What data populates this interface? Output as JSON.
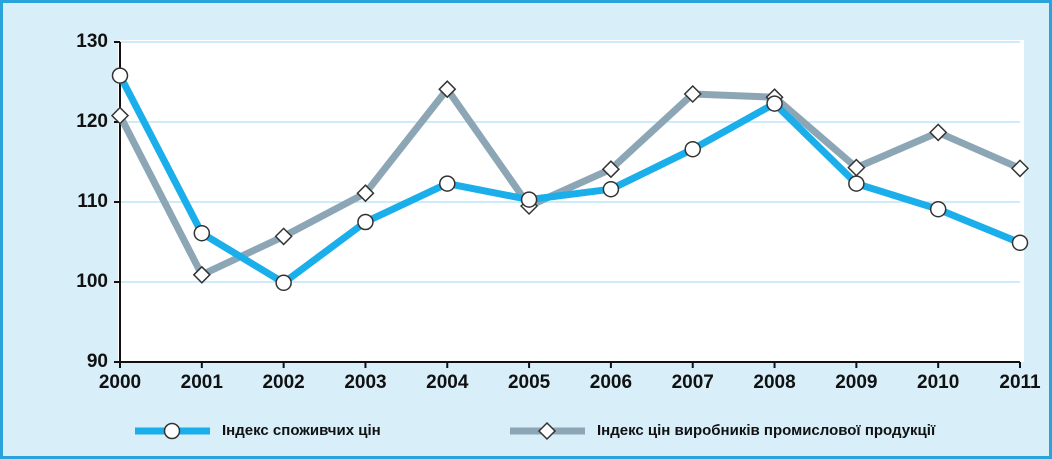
{
  "chart_data": {
    "type": "line",
    "categories": [
      "2000",
      "2001",
      "2002",
      "2003",
      "2004",
      "2005",
      "2006",
      "2007",
      "2008",
      "2009",
      "2010",
      "2011"
    ],
    "series": [
      {
        "name": "Індекс споживчих цін",
        "color": "#1aaeea",
        "marker": "circle",
        "values": [
          125.8,
          106.1,
          99.9,
          107.5,
          112.3,
          110.3,
          111.6,
          116.6,
          122.3,
          112.3,
          109.1,
          104.9
        ]
      },
      {
        "name": "Індекс цін виробників промислової продукції",
        "color": "#8ca6b6",
        "marker": "diamond",
        "values": [
          120.8,
          100.9,
          105.7,
          111.1,
          124.1,
          109.5,
          114.1,
          123.5,
          123.1,
          114.3,
          118.7,
          114.2
        ]
      }
    ],
    "ylim": [
      90,
      130
    ],
    "yticks": [
      90,
      100,
      110,
      120,
      130
    ],
    "grid": true
  }
}
